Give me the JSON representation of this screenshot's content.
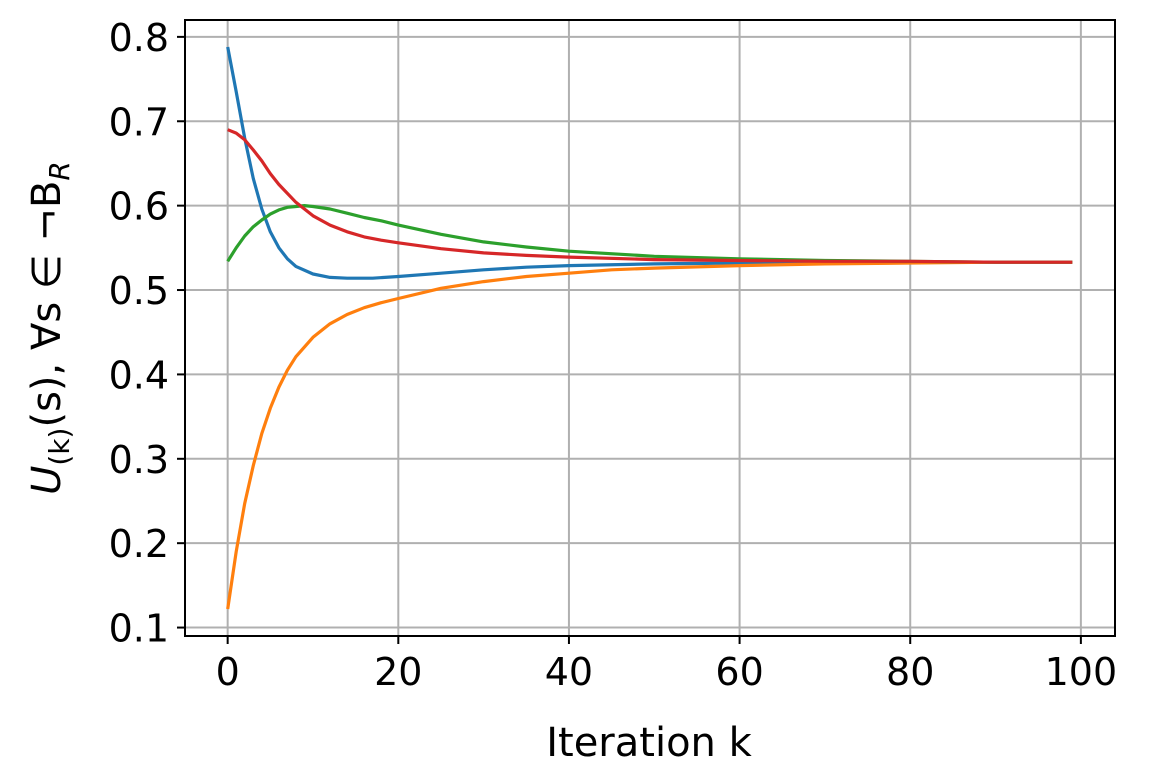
{
  "chart_data": {
    "type": "line",
    "title": "",
    "xlabel": "Iteration k",
    "ylabel": "U(k)(s), ∀s ∈ ¬BR",
    "ylabel_parts": {
      "main": "U",
      "sub": "(k)",
      "mid": "(s), ∀s ∈ ¬B",
      "sub2": "R"
    },
    "xlim": [
      -5,
      104
    ],
    "ylim": [
      0.09,
      0.82
    ],
    "xticks": [
      0,
      20,
      40,
      60,
      80,
      100
    ],
    "yticks": [
      0.1,
      0.2,
      0.3,
      0.4,
      0.5,
      0.6,
      0.7,
      0.8
    ],
    "xtick_labels": [
      "0",
      "20",
      "40",
      "60",
      "80",
      "100"
    ],
    "ytick_labels": [
      "0.1",
      "0.2",
      "0.3",
      "0.4",
      "0.5",
      "0.6",
      "0.7",
      "0.8"
    ],
    "grid": true,
    "legend": "none",
    "series": [
      {
        "color": "#1f77b4",
        "x": [
          0,
          1,
          2,
          3,
          4,
          5,
          6,
          7,
          8,
          10,
          12,
          14,
          15,
          17,
          20,
          25,
          30,
          35,
          40,
          50,
          60,
          70,
          80,
          90,
          99
        ],
        "y": [
          0.788,
          0.735,
          0.68,
          0.632,
          0.596,
          0.569,
          0.55,
          0.537,
          0.528,
          0.519,
          0.515,
          0.514,
          0.514,
          0.514,
          0.516,
          0.52,
          0.524,
          0.527,
          0.529,
          0.531,
          0.532,
          0.533,
          0.533,
          0.533,
          0.533
        ]
      },
      {
        "color": "#ff7f0e",
        "x": [
          0,
          1,
          2,
          3,
          4,
          5,
          6,
          7,
          8,
          10,
          12,
          14,
          16,
          18,
          20,
          25,
          30,
          35,
          40,
          45,
          50,
          60,
          70,
          80,
          90,
          99
        ],
        "y": [
          0.122,
          0.19,
          0.247,
          0.292,
          0.33,
          0.36,
          0.385,
          0.405,
          0.421,
          0.444,
          0.46,
          0.471,
          0.479,
          0.485,
          0.49,
          0.502,
          0.51,
          0.516,
          0.52,
          0.524,
          0.526,
          0.529,
          0.531,
          0.532,
          0.533,
          0.533
        ]
      },
      {
        "color": "#2ca02c",
        "x": [
          0,
          1,
          2,
          3,
          4,
          5,
          6,
          7,
          8,
          9,
          10,
          12,
          14,
          16,
          18,
          20,
          25,
          30,
          35,
          40,
          50,
          60,
          70,
          80,
          90,
          99
        ],
        "y": [
          0.534,
          0.55,
          0.564,
          0.575,
          0.583,
          0.59,
          0.595,
          0.598,
          0.599,
          0.6,
          0.599,
          0.596,
          0.591,
          0.586,
          0.582,
          0.577,
          0.566,
          0.557,
          0.551,
          0.546,
          0.54,
          0.537,
          0.535,
          0.534,
          0.533,
          0.533
        ]
      },
      {
        "color": "#d62728",
        "x": [
          0,
          1,
          2,
          3,
          4,
          5,
          6,
          8,
          10,
          12,
          14,
          16,
          18,
          20,
          25,
          30,
          35,
          40,
          50,
          60,
          70,
          80,
          90,
          99
        ],
        "y": [
          0.69,
          0.686,
          0.678,
          0.666,
          0.653,
          0.638,
          0.625,
          0.604,
          0.588,
          0.577,
          0.569,
          0.563,
          0.559,
          0.556,
          0.549,
          0.544,
          0.541,
          0.539,
          0.536,
          0.535,
          0.534,
          0.534,
          0.533,
          0.533
        ]
      }
    ]
  }
}
